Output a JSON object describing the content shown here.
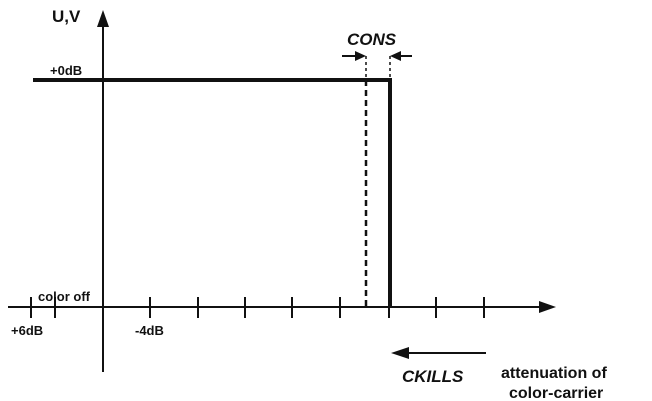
{
  "diagram": {
    "y_axis_label": "U,V",
    "level_top_label": "+0dB",
    "level_bottom_label": "color off",
    "tick_label_left": "+6dB",
    "tick_label_mid": "-4dB",
    "cons_label": "CONS",
    "ckills_label": "CKILLS",
    "attenuation_line1": "attenuation of",
    "attenuation_line2": "color-carrier"
  }
}
